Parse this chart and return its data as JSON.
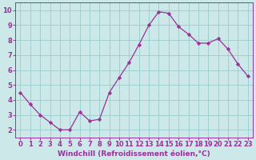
{
  "x": [
    0,
    1,
    2,
    3,
    4,
    5,
    6,
    7,
    8,
    9,
    10,
    11,
    12,
    13,
    14,
    15,
    16,
    17,
    18,
    19,
    20,
    21,
    22,
    23
  ],
  "y": [
    4.5,
    3.7,
    3.0,
    2.5,
    2.0,
    2.0,
    3.2,
    2.6,
    2.7,
    4.5,
    5.5,
    6.5,
    7.7,
    9.0,
    9.9,
    9.8,
    8.9,
    8.4,
    7.8,
    7.8,
    8.1,
    7.4,
    6.4,
    5.6
  ],
  "line_color": "#993399",
  "marker": "D",
  "marker_size": 2.2,
  "bg_color": "#cce8e8",
  "grid_color": "#99cccc",
  "xlabel": "Windchill (Refroidissement éolien,°C)",
  "xlim": [
    -0.5,
    23.5
  ],
  "ylim": [
    1.5,
    10.5
  ],
  "yticks": [
    2,
    3,
    4,
    5,
    6,
    7,
    8,
    9,
    10
  ],
  "xticks": [
    0,
    1,
    2,
    3,
    4,
    5,
    6,
    7,
    8,
    9,
    10,
    11,
    12,
    13,
    14,
    15,
    16,
    17,
    18,
    19,
    20,
    21,
    22,
    23
  ],
  "label_color": "#993399",
  "tick_color": "#993399",
  "spine_color": "#993399",
  "font_size_xlabel": 6.5,
  "font_size_ticks": 6.0
}
